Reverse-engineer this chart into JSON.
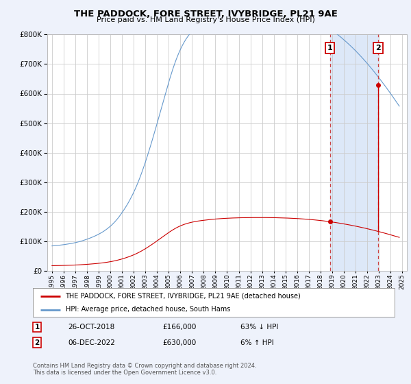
{
  "title": "THE PADDOCK, FORE STREET, IVYBRIDGE, PL21 9AE",
  "subtitle": "Price paid vs. HM Land Registry's House Price Index (HPI)",
  "legend_line1": "THE PADDOCK, FORE STREET, IVYBRIDGE, PL21 9AE (detached house)",
  "legend_line2": "HPI: Average price, detached house, South Hams",
  "annotation1_date": "26-OCT-2018",
  "annotation1_price": "£166,000",
  "annotation1_hpi": "63% ↓ HPI",
  "annotation2_date": "06-DEC-2022",
  "annotation2_price": "£630,000",
  "annotation2_hpi": "6% ↑ HPI",
  "footnote": "Contains HM Land Registry data © Crown copyright and database right 2024.\nThis data is licensed under the Open Government Licence v3.0.",
  "hpi_color": "#6699cc",
  "price_color": "#cc0000",
  "vline_color": "#cc4444",
  "bg_color": "#eef2fb",
  "plot_bg": "#ffffff",
  "shade_color": "#dde8f8",
  "ylim": [
    0,
    800000
  ],
  "yticks": [
    0,
    100000,
    200000,
    300000,
    400000,
    500000,
    600000,
    700000,
    800000
  ],
  "sale1_year": 2018.82,
  "sale1_price": 166000,
  "sale2_year": 2022.93,
  "sale2_price": 630000,
  "xlim_left": 1994.6,
  "xlim_right": 2025.4,
  "hpi_x": [
    1995.0,
    1995.083,
    1995.167,
    1995.25,
    1995.333,
    1995.417,
    1995.5,
    1995.583,
    1995.667,
    1995.75,
    1995.833,
    1995.917,
    1996.0,
    1996.083,
    1996.167,
    1996.25,
    1996.333,
    1996.417,
    1996.5,
    1996.583,
    1996.667,
    1996.75,
    1996.833,
    1996.917,
    1997.0,
    1997.083,
    1997.167,
    1997.25,
    1997.333,
    1997.417,
    1997.5,
    1997.583,
    1997.667,
    1997.75,
    1997.833,
    1997.917,
    1998.0,
    1998.083,
    1998.167,
    1998.25,
    1998.333,
    1998.417,
    1998.5,
    1998.583,
    1998.667,
    1998.75,
    1998.833,
    1998.917,
    1999.0,
    1999.083,
    1999.167,
    1999.25,
    1999.333,
    1999.417,
    1999.5,
    1999.583,
    1999.667,
    1999.75,
    1999.833,
    1999.917,
    2000.0,
    2000.083,
    2000.167,
    2000.25,
    2000.333,
    2000.417,
    2000.5,
    2000.583,
    2000.667,
    2000.75,
    2000.833,
    2000.917,
    2001.0,
    2001.083,
    2001.167,
    2001.25,
    2001.333,
    2001.417,
    2001.5,
    2001.583,
    2001.667,
    2001.75,
    2001.833,
    2001.917,
    2002.0,
    2002.083,
    2002.167,
    2002.25,
    2002.333,
    2002.417,
    2002.5,
    2002.583,
    2002.667,
    2002.75,
    2002.833,
    2002.917,
    2003.0,
    2003.083,
    2003.167,
    2003.25,
    2003.333,
    2003.417,
    2003.5,
    2003.583,
    2003.667,
    2003.75,
    2003.833,
    2003.917,
    2004.0,
    2004.083,
    2004.167,
    2004.25,
    2004.333,
    2004.417,
    2004.5,
    2004.583,
    2004.667,
    2004.75,
    2004.833,
    2004.917,
    2005.0,
    2005.083,
    2005.167,
    2005.25,
    2005.333,
    2005.417,
    2005.5,
    2005.583,
    2005.667,
    2005.75,
    2005.833,
    2005.917,
    2006.0,
    2006.083,
    2006.167,
    2006.25,
    2006.333,
    2006.417,
    2006.5,
    2006.583,
    2006.667,
    2006.75,
    2006.833,
    2006.917,
    2007.0,
    2007.083,
    2007.167,
    2007.25,
    2007.333,
    2007.417,
    2007.5,
    2007.583,
    2007.667,
    2007.75,
    2007.833,
    2007.917,
    2008.0,
    2008.083,
    2008.167,
    2008.25,
    2008.333,
    2008.417,
    2008.5,
    2008.583,
    2008.667,
    2008.75,
    2008.833,
    2008.917,
    2009.0,
    2009.083,
    2009.167,
    2009.25,
    2009.333,
    2009.417,
    2009.5,
    2009.583,
    2009.667,
    2009.75,
    2009.833,
    2009.917,
    2010.0,
    2010.083,
    2010.167,
    2010.25,
    2010.333,
    2010.417,
    2010.5,
    2010.583,
    2010.667,
    2010.75,
    2010.833,
    2010.917,
    2011.0,
    2011.083,
    2011.167,
    2011.25,
    2011.333,
    2011.417,
    2011.5,
    2011.583,
    2011.667,
    2011.75,
    2011.833,
    2011.917,
    2012.0,
    2012.083,
    2012.167,
    2012.25,
    2012.333,
    2012.417,
    2012.5,
    2012.583,
    2012.667,
    2012.75,
    2012.833,
    2012.917,
    2013.0,
    2013.083,
    2013.167,
    2013.25,
    2013.333,
    2013.417,
    2013.5,
    2013.583,
    2013.667,
    2013.75,
    2013.833,
    2013.917,
    2014.0,
    2014.083,
    2014.167,
    2014.25,
    2014.333,
    2014.417,
    2014.5,
    2014.583,
    2014.667,
    2014.75,
    2014.833,
    2014.917,
    2015.0,
    2015.083,
    2015.167,
    2015.25,
    2015.333,
    2015.417,
    2015.5,
    2015.583,
    2015.667,
    2015.75,
    2015.833,
    2015.917,
    2016.0,
    2016.083,
    2016.167,
    2016.25,
    2016.333,
    2016.417,
    2016.5,
    2016.583,
    2016.667,
    2016.75,
    2016.833,
    2016.917,
    2017.0,
    2017.083,
    2017.167,
    2017.25,
    2017.333,
    2017.417,
    2017.5,
    2017.583,
    2017.667,
    2017.75,
    2017.833,
    2017.917,
    2018.0,
    2018.083,
    2018.167,
    2018.25,
    2018.333,
    2018.417,
    2018.5,
    2018.583,
    2018.667,
    2018.75,
    2018.833,
    2018.917,
    2019.0,
    2019.083,
    2019.167,
    2019.25,
    2019.333,
    2019.417,
    2019.5,
    2019.583,
    2019.667,
    2019.75,
    2019.833,
    2019.917,
    2020.0,
    2020.083,
    2020.167,
    2020.25,
    2020.333,
    2020.417,
    2020.5,
    2020.583,
    2020.667,
    2020.75,
    2020.833,
    2020.917,
    2021.0,
    2021.083,
    2021.167,
    2021.25,
    2021.333,
    2021.417,
    2021.5,
    2021.583,
    2021.667,
    2021.75,
    2021.833,
    2021.917,
    2022.0,
    2022.083,
    2022.167,
    2022.25,
    2022.333,
    2022.417,
    2022.5,
    2022.583,
    2022.667,
    2022.75,
    2022.833,
    2022.917,
    2023.0,
    2023.083,
    2023.167,
    2023.25,
    2023.333,
    2023.417,
    2023.5,
    2023.583,
    2023.667,
    2023.75,
    2023.833,
    2023.917,
    2024.0,
    2024.083,
    2024.167,
    2024.25,
    2024.333,
    2024.417,
    2024.5,
    2024.583,
    2024.667,
    2024.75
  ],
  "hpi_y": [
    84000,
    84200,
    84500,
    84800,
    85100,
    85400,
    85700,
    86100,
    86500,
    86900,
    87300,
    87700,
    88200,
    88700,
    89200,
    89700,
    90200,
    90700,
    91200,
    91800,
    92400,
    93000,
    93700,
    94400,
    95100,
    95900,
    96700,
    97500,
    98400,
    99300,
    100200,
    101200,
    102200,
    103300,
    104400,
    105500,
    106700,
    107900,
    109100,
    110400,
    111700,
    113000,
    114400,
    115800,
    117300,
    118800,
    120400,
    122000,
    123700,
    125400,
    127200,
    129100,
    131100,
    133200,
    135400,
    137700,
    140100,
    142600,
    145200,
    147900,
    150700,
    153600,
    156700,
    160000,
    163400,
    166900,
    170600,
    174500,
    178600,
    182800,
    187200,
    191700,
    196400,
    201200,
    206200,
    211300,
    216600,
    222000,
    227600,
    233400,
    239400,
    245600,
    252000,
    258600,
    265400,
    272500,
    279800,
    287400,
    295300,
    303400,
    311800,
    320500,
    329400,
    338600,
    348000,
    357600,
    367400,
    377500,
    387700,
    398100,
    408700,
    419500,
    430400,
    441400,
    452600,
    463900,
    475300,
    486800,
    498400,
    510000,
    521700,
    533500,
    545300,
    557100,
    568900,
    580700,
    592400,
    604000,
    615500,
    626900,
    638100,
    649100,
    659900,
    670400,
    680600,
    690500,
    700000,
    709200,
    718000,
    726400,
    734400,
    742100,
    749400,
    756300,
    762900,
    769100,
    774900,
    780400,
    785600,
    790500,
    795100,
    799400,
    803500,
    807400,
    811100,
    814600,
    817900,
    821000,
    823900,
    826700,
    829400,
    831900,
    834300,
    836600,
    838800,
    840900,
    842900,
    844900,
    846800,
    848700,
    850600,
    852400,
    854200,
    855900,
    857600,
    859200,
    860800,
    862300,
    863700,
    865100,
    866400,
    867700,
    868900,
    870100,
    871200,
    872300,
    873300,
    874300,
    875200,
    876100,
    876900,
    877700,
    878500,
    879200,
    879900,
    880600,
    881200,
    881800,
    882400,
    882900,
    883400,
    883900,
    884300,
    884700,
    885100,
    885500,
    885800,
    886100,
    886400,
    886700,
    886900,
    887100,
    887300,
    887500,
    887700,
    887800,
    887900,
    888000,
    888100,
    888200,
    888200,
    888300,
    888300,
    888300,
    888300,
    888300,
    888300,
    888200,
    888200,
    888100,
    888000,
    887900,
    887800,
    887600,
    887400,
    887200,
    887000,
    886700,
    886400,
    886100,
    885700,
    885400,
    885000,
    884600,
    884200,
    883700,
    883200,
    882700,
    882200,
    881600,
    881000,
    880400,
    879700,
    879000,
    878300,
    877600,
    876800,
    876000,
    875200,
    874400,
    873500,
    872600,
    871700,
    870700,
    869700,
    868700,
    867600,
    866500,
    865400,
    864200,
    863000,
    861800,
    860500,
    859200,
    857900,
    856500,
    855100,
    853700,
    852200,
    850700,
    849100,
    847500,
    845900,
    844200,
    842500,
    840700,
    838900,
    837100,
    835200,
    833300,
    831300,
    829300,
    827200,
    825100,
    822900,
    820700,
    818500,
    816200,
    813800,
    811400,
    809000,
    806500,
    804000,
    801500,
    798900,
    796300,
    793600,
    790900,
    788100,
    785300,
    782500,
    779600,
    776700,
    773700,
    770700,
    767700,
    764600,
    761500,
    758300,
    755100,
    751900,
    748600,
    745300,
    741900,
    738500,
    735100,
    731600,
    728100,
    724500,
    720900,
    717300,
    713600,
    709900,
    706100,
    702300,
    698500,
    694600,
    690700,
    686700,
    682700,
    678700,
    674600,
    670500,
    666400,
    662200,
    658000,
    653800,
    649500,
    645200,
    640900,
    636500,
    632100,
    627700,
    623200,
    618700,
    614200,
    609600,
    605000,
    600400,
    595700,
    591000,
    586300,
    581600,
    576800,
    572000,
    567200,
    562400,
    557500
  ]
}
